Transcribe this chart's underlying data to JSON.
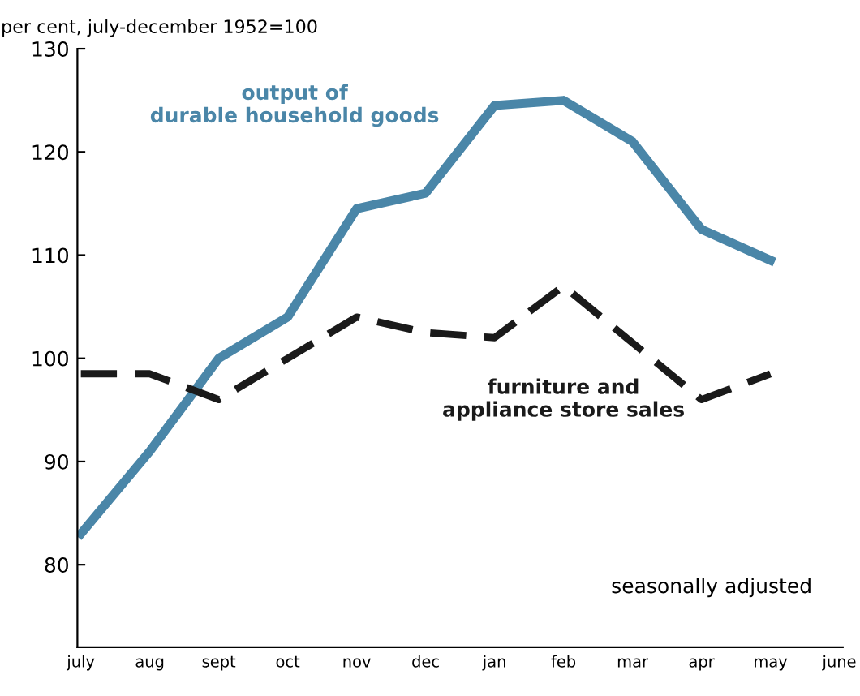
{
  "chart_data": {
    "type": "line",
    "ylabel": "per cent, july-december 1952=100",
    "categories": [
      "july",
      "aug",
      "sept",
      "oct",
      "nov",
      "dec",
      "jan",
      "feb",
      "mar",
      "apr",
      "may",
      "june"
    ],
    "series": [
      {
        "name": "output of\ndurable household goods",
        "color": "#4a86a8",
        "line_style": "solid",
        "values": [
          83,
          91,
          100,
          104,
          114.5,
          116,
          124.5,
          125,
          121,
          112.5,
          109.5,
          null
        ]
      },
      {
        "name": "furniture and\nappliance store sales",
        "color": "#1a1a1a",
        "line_style": "dashed",
        "values": [
          98.5,
          98.5,
          96,
          100,
          104,
          102.5,
          102,
          107,
          101.5,
          96,
          98.5,
          null
        ]
      }
    ],
    "ylim": [
      72,
      130
    ],
    "yticks": [
      80,
      90,
      100,
      110,
      120,
      130
    ],
    "grid": false,
    "legend": false,
    "annotations": [
      "seasonally adjusted"
    ]
  }
}
